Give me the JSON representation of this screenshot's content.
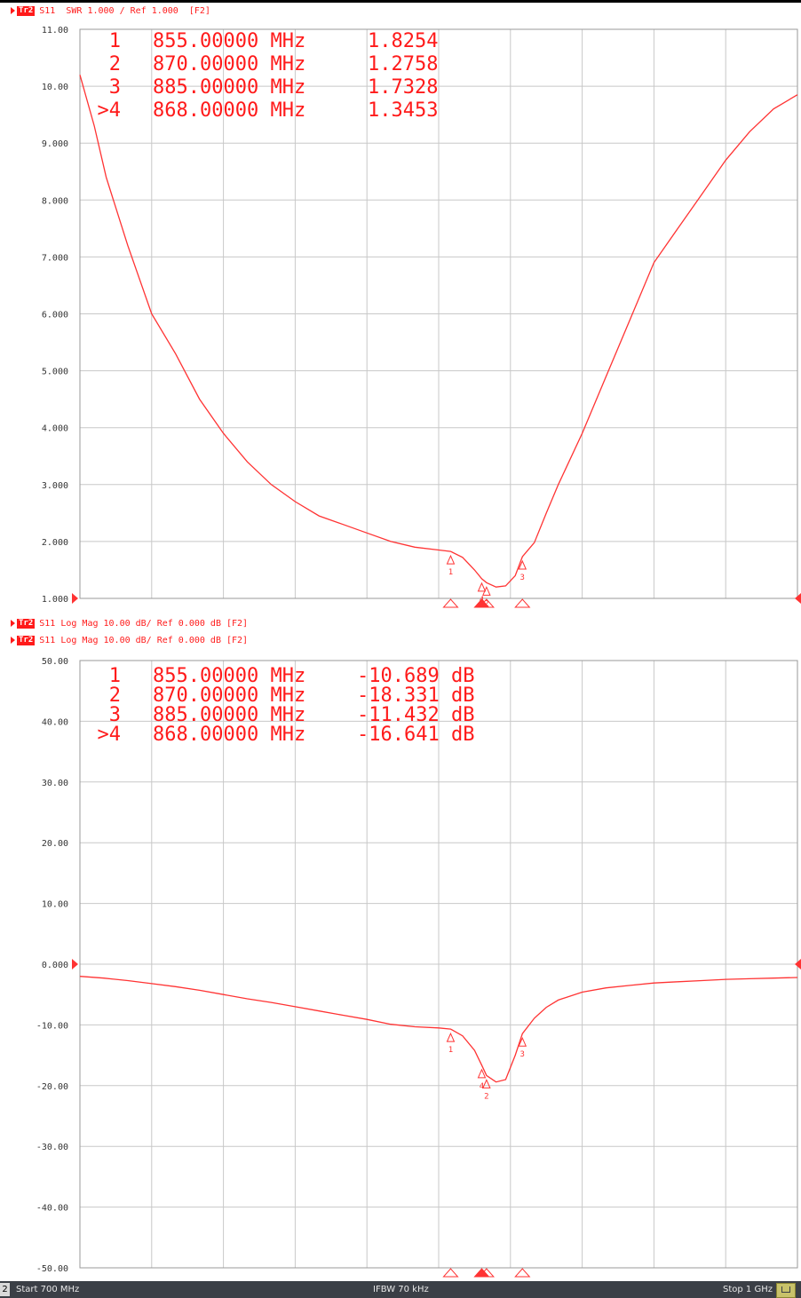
{
  "colors": {
    "trace": "#ff3333",
    "text": "#ff1a1a",
    "grid": "#c8c8c8",
    "frame": "#9a9a9a",
    "axis_text": "#333333"
  },
  "top_header": {
    "badge": "Tr2",
    "text": "S11  SWR 1.000 / Ref 1.000  [F2]"
  },
  "bottom_headers": [
    {
      "badge": "Tr2",
      "text": "S11 Log Mag 10.00 dB/ Ref 0.000 dB [F2]"
    },
    {
      "badge": "Tr2",
      "text": "S11 Log Mag 10.00 dB/ Ref 0.000 dB [F2]"
    }
  ],
  "status": {
    "channel": "2",
    "start": "Start 700 MHz",
    "ifbw": "IFBW 70 kHz",
    "stop": "Stop 1 GHz"
  },
  "chart_data": [
    {
      "type": "line",
      "format": "SWR",
      "x_range_mhz": [
        700,
        1000
      ],
      "ylim": [
        1.0,
        11.0
      ],
      "y_ticks": [
        "11.00",
        "10.00",
        "9.000",
        "8.000",
        "7.000",
        "6.000",
        "5.000",
        "4.000",
        "3.000",
        "2.000",
        "1.000"
      ],
      "x": [
        700,
        706,
        711,
        720,
        730,
        740,
        750,
        760,
        770,
        780,
        790,
        800,
        810,
        820,
        830,
        840,
        850,
        855,
        860,
        865,
        868,
        870,
        874,
        878,
        882,
        885,
        890,
        895,
        900,
        910,
        920,
        930,
        940,
        950,
        960,
        970,
        980,
        990,
        1000
      ],
      "y": [
        10.2,
        9.3,
        8.4,
        7.2,
        6.0,
        5.3,
        4.5,
        3.9,
        3.4,
        3.0,
        2.7,
        2.45,
        2.3,
        2.15,
        2.0,
        1.9,
        1.85,
        1.8254,
        1.72,
        1.5,
        1.3453,
        1.2758,
        1.2,
        1.22,
        1.4,
        1.7328,
        1.98,
        2.5,
        3.0,
        3.9,
        4.9,
        5.9,
        6.9,
        7.5,
        8.1,
        8.7,
        9.2,
        9.6,
        9.85
      ],
      "markers": [
        {
          "id": "1",
          "freq": "855.00000 MHz",
          "value": "1.8254",
          "x": 855,
          "y": 1.8254
        },
        {
          "id": "2",
          "freq": "870.00000 MHz",
          "value": "1.2758",
          "x": 870,
          "y": 1.2758
        },
        {
          "id": "3",
          "freq": "885.00000 MHz",
          "value": "1.7328",
          "x": 885,
          "y": 1.7328
        },
        {
          "id": ">4",
          "freq": "868.00000 MHz",
          "value": "1.3453",
          "x": 868,
          "y": 1.3453
        }
      ]
    },
    {
      "type": "line",
      "format": "Log Mag",
      "x_range_mhz": [
        700,
        1000
      ],
      "ylim": [
        -50,
        50
      ],
      "y_ticks": [
        "50.00",
        "40.00",
        "30.00",
        "20.00",
        "10.00",
        "0.000",
        "-10.00",
        "-20.00",
        "-30.00",
        "-40.00",
        "-50.00"
      ],
      "x": [
        700,
        710,
        720,
        730,
        740,
        750,
        760,
        770,
        780,
        790,
        800,
        810,
        820,
        830,
        840,
        850,
        855,
        860,
        865,
        868,
        870,
        874,
        878,
        882,
        885,
        890,
        895,
        900,
        910,
        920,
        930,
        940,
        950,
        960,
        970,
        980,
        990,
        1000
      ],
      "y": [
        -2.0,
        -2.3,
        -2.7,
        -3.2,
        -3.7,
        -4.3,
        -5.0,
        -5.7,
        -6.3,
        -7.0,
        -7.7,
        -8.4,
        -9.1,
        -9.9,
        -10.3,
        -10.5,
        -10.689,
        -11.8,
        -14.2,
        -16.641,
        -18.331,
        -19.4,
        -19.0,
        -15.0,
        -11.432,
        -8.9,
        -7.1,
        -5.9,
        -4.6,
        -3.9,
        -3.5,
        -3.1,
        -2.9,
        -2.7,
        -2.5,
        -2.4,
        -2.3,
        -2.2
      ],
      "markers": [
        {
          "id": "1",
          "freq": "855.00000 MHz",
          "value": "-10.689 dB",
          "x": 855,
          "y": -10.689
        },
        {
          "id": "2",
          "freq": "870.00000 MHz",
          "value": "-18.331 dB",
          "x": 870,
          "y": -18.331
        },
        {
          "id": "3",
          "freq": "885.00000 MHz",
          "value": "-11.432 dB",
          "x": 885,
          "y": -11.432
        },
        {
          "id": ">4",
          "freq": "868.00000 MHz",
          "value": "-16.641 dB",
          "x": 868,
          "y": -16.641
        }
      ]
    }
  ]
}
